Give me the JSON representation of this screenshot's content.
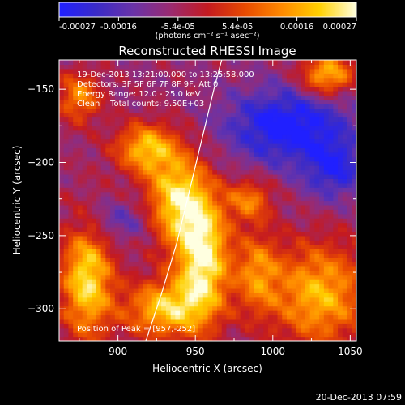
{
  "chart_data": {
    "type": "heatmap",
    "title": "Reconstructed RHESSI Image",
    "xlabel": "Heliocentric X (arcsec)",
    "ylabel": "Heliocentric Y (arcsec)",
    "xlim": [
      862,
      1054
    ],
    "ylim": [
      -322,
      -130
    ],
    "x_ticks": [
      900,
      950,
      1000,
      1050
    ],
    "y_ticks": [
      -300,
      -250,
      -200,
      -150
    ],
    "colorbar": {
      "ticks": [
        "-0.00027",
        "-0.00016",
        "-5.4e-05",
        "5.4e-05",
        "0.00016",
        "0.00027"
      ],
      "label": "(photons cm⁻² s⁻¹ asec⁻²)",
      "range": [
        -0.00027,
        0.00027
      ],
      "colors": [
        "#2020ff",
        "#3a2bc8",
        "#6a33a8",
        "#9a2a70",
        "#c41a20",
        "#e84a00",
        "#ff8a00",
        "#ffd000",
        "#ffffe0"
      ]
    },
    "annotations": [
      "19-Dec-2013 13:21:00.000 to 13:25:58.000",
      "Detectors: 3F 5F 6F 7F 8F 9F, Att 0",
      "Energy Range: 12.0 - 25.0 keV",
      "Clean    Total counts: 9.50E+03"
    ],
    "peak_label": "Position of Peak = [957,-252]",
    "peak": [
      957,
      -252
    ],
    "limb_curve": [
      [
        918,
        -322
      ],
      [
        928,
        -290
      ],
      [
        938,
        -255
      ],
      [
        946,
        -220
      ],
      [
        954,
        -185
      ],
      [
        962,
        -150
      ],
      [
        967,
        -130
      ]
    ],
    "sources": [
      {
        "x": 955,
        "y": -265,
        "sx": 12,
        "sy": 30,
        "amp": 1.0
      },
      {
        "x": 938,
        "y": -225,
        "sx": 14,
        "sy": 22,
        "amp": 0.85
      },
      {
        "x": 918,
        "y": -190,
        "sx": 14,
        "sy": 12,
        "amp": 0.75
      },
      {
        "x": 930,
        "y": -300,
        "sx": 18,
        "sy": 14,
        "amp": 0.8
      },
      {
        "x": 880,
        "y": -280,
        "sx": 12,
        "sy": 28,
        "amp": 0.9
      },
      {
        "x": 1030,
        "y": -290,
        "sx": 22,
        "sy": 25,
        "amp": 0.75
      },
      {
        "x": 1035,
        "y": -140,
        "sx": 12,
        "sy": 10,
        "amp": 0.8
      },
      {
        "x": 990,
        "y": -275,
        "sx": 10,
        "sy": 20,
        "amp": 0.55
      },
      {
        "x": 985,
        "y": -225,
        "sx": 10,
        "sy": 10,
        "amp": 0.55
      },
      {
        "x": 875,
        "y": -155,
        "sx": 10,
        "sy": 12,
        "amp": 0.6
      },
      {
        "x": 1010,
        "y": -175,
        "sx": 28,
        "sy": 18,
        "amp": -0.7
      },
      {
        "x": 1040,
        "y": -205,
        "sx": 14,
        "sy": 14,
        "amp": -0.5
      },
      {
        "x": 900,
        "y": -240,
        "sx": 16,
        "sy": 10,
        "amp": -0.3
      }
    ]
  },
  "footer": {
    "timestamp": "20-Dec-2013 07:59"
  }
}
